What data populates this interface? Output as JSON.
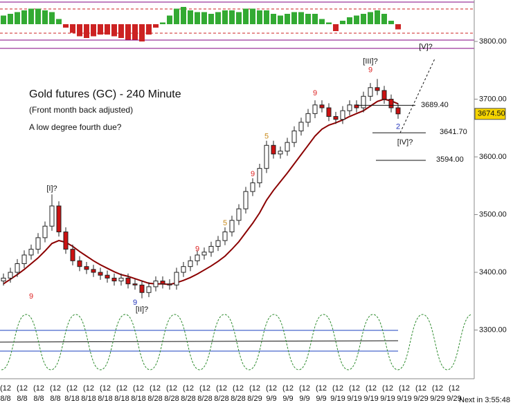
{
  "chart_data": {
    "type": "candlestick",
    "title": "Gold futures (GC) - 240 Minute",
    "subtitle": "(Front month back adjusted)",
    "note": "A low degree fourth due?",
    "footer": "Next in 3:55:48",
    "x_label_prefix": "(12",
    "x_labels": [
      "8/8",
      "8/8",
      "8/8",
      "8/8",
      "8/18",
      "8/18",
      "8/18",
      "8/18",
      "8/18",
      "8/28",
      "8/28",
      "8/28",
      "8/28",
      "8/28",
      "8/28",
      "8/29",
      "9/9",
      "9/9",
      "9/9",
      "9/9",
      "9/19",
      "9/19",
      "9/19",
      "9/19",
      "9/19",
      "9/29",
      "9/29",
      "9/29"
    ],
    "open": [
      3385,
      3390,
      3400,
      3415,
      3430,
      3440,
      3460,
      3480,
      3515,
      3470,
      3440,
      3420,
      3410,
      3405,
      3400,
      3395,
      3390,
      3385,
      3390,
      3380,
      3378,
      3365,
      3375,
      3385,
      3380,
      3378,
      3400,
      3410,
      3420,
      3430,
      3435,
      3445,
      3455,
      3470,
      3490,
      3510,
      3540,
      3555,
      3580,
      3620,
      3605,
      3610,
      3625,
      3645,
      3660,
      3675,
      3690,
      3685,
      3670,
      3665,
      3680,
      3690,
      3685,
      3705,
      3720,
      3715,
      3700,
      3685
    ],
    "high": [
      3398,
      3408,
      3423,
      3438,
      3448,
      3468,
      3488,
      3535,
      3523,
      3478,
      3448,
      3428,
      3418,
      3413,
      3408,
      3403,
      3398,
      3398,
      3398,
      3388,
      3386,
      3383,
      3393,
      3393,
      3388,
      3408,
      3418,
      3428,
      3438,
      3443,
      3453,
      3463,
      3478,
      3498,
      3518,
      3548,
      3563,
      3588,
      3628,
      3628,
      3618,
      3633,
      3653,
      3668,
      3683,
      3698,
      3698,
      3693,
      3678,
      3688,
      3698,
      3698,
      3713,
      3728,
      3735,
      3723,
      3708,
      3693
    ],
    "low": [
      3377,
      3382,
      3392,
      3407,
      3422,
      3432,
      3452,
      3472,
      3462,
      3432,
      3412,
      3402,
      3397,
      3392,
      3387,
      3382,
      3377,
      3377,
      3372,
      3370,
      3355,
      3357,
      3367,
      3372,
      3370,
      3370,
      3392,
      3402,
      3412,
      3422,
      3427,
      3437,
      3447,
      3462,
      3482,
      3502,
      3532,
      3547,
      3572,
      3597,
      3597,
      3602,
      3617,
      3637,
      3652,
      3667,
      3677,
      3662,
      3657,
      3657,
      3672,
      3677,
      3677,
      3697,
      3707,
      3692,
      3677,
      3666
    ],
    "close": [
      3390,
      3400,
      3415,
      3430,
      3440,
      3460,
      3480,
      3515,
      3470,
      3440,
      3420,
      3410,
      3405,
      3400,
      3395,
      3390,
      3385,
      3390,
      3380,
      3378,
      3365,
      3375,
      3385,
      3380,
      3378,
      3400,
      3410,
      3420,
      3430,
      3435,
      3445,
      3455,
      3470,
      3490,
      3510,
      3540,
      3555,
      3580,
      3620,
      3605,
      3610,
      3625,
      3645,
      3660,
      3675,
      3690,
      3685,
      3670,
      3665,
      3680,
      3690,
      3685,
      3705,
      3720,
      3715,
      3700,
      3685,
      3674.5
    ],
    "up_color": "#2e8b2e",
    "down_color": "#cc1111",
    "ma": {
      "color": "#8b0000",
      "values": [
        3380,
        3388,
        3396,
        3405,
        3415,
        3425,
        3437,
        3450,
        3455,
        3452,
        3445,
        3436,
        3428,
        3420,
        3413,
        3407,
        3401,
        3396,
        3393,
        3389,
        3385,
        3381,
        3380,
        3380,
        3379,
        3382,
        3386,
        3391,
        3397,
        3404,
        3411,
        3419,
        3428,
        3440,
        3453,
        3469,
        3485,
        3503,
        3525,
        3542,
        3557,
        3572,
        3588,
        3604,
        3620,
        3636,
        3648,
        3655,
        3659,
        3664,
        3670,
        3675,
        3680,
        3688,
        3696,
        3700,
        3697,
        3692
      ]
    },
    "ylim": [
      3230,
      3870
    ],
    "yticks": [
      {
        "value": 3300,
        "label": "3300.00"
      },
      {
        "value": 3400,
        "label": "3400.00"
      },
      {
        "value": 3500,
        "label": "3500.00"
      },
      {
        "value": 3600,
        "label": "3600.00"
      },
      {
        "value": 3700,
        "label": "3700.00"
      },
      {
        "value": 3800,
        "label": "3800.00"
      }
    ],
    "last_price": {
      "value": 3674.5,
      "label": "3674.50"
    },
    "levels": [
      {
        "value": 3689.4,
        "label": "3689.40"
      },
      {
        "value": 3641.7,
        "label": "3641.70"
      },
      {
        "value": 3594.0,
        "label": "3594.00"
      }
    ],
    "waves": [
      {
        "text": "[I]?",
        "candle": 7,
        "price": 3545
      },
      {
        "text": "[II]?",
        "candle": 20,
        "price": 3335
      },
      {
        "text": "[III]?",
        "candle": 53,
        "price": 3765
      },
      {
        "text": "[IV]?",
        "candle": 58,
        "price": 3625
      },
      {
        "text": "[V]?",
        "candle": 61,
        "price": 3790
      }
    ],
    "projection": [
      3641.7,
      3770
    ],
    "counts": [
      {
        "text": "9",
        "candle": 4,
        "price": 3358,
        "color": "#dd2222"
      },
      {
        "text": "9",
        "candle": 19,
        "price": 3347,
        "color": "#2233bb"
      },
      {
        "text": "9",
        "candle": 28,
        "price": 3440,
        "color": "#dd2222"
      },
      {
        "text": "5",
        "candle": 32,
        "price": 3485,
        "color": "#c88a1a"
      },
      {
        "text": "9",
        "candle": 36,
        "price": 3570,
        "color": "#dd2222"
      },
      {
        "text": "5",
        "candle": 38,
        "price": 3635,
        "color": "#c88a1a"
      },
      {
        "text": "9",
        "candle": 45,
        "price": 3710,
        "color": "#dd2222"
      },
      {
        "text": "9",
        "candle": 53,
        "price": 3750,
        "color": "#dd2222"
      },
      {
        "text": "2",
        "candle": 57,
        "price": 3652,
        "color": "#2233bb"
      }
    ],
    "oscillator": {
      "ylim": [
        -1,
        1
      ],
      "values": [
        0.5,
        0.6,
        0.7,
        0.8,
        0.9,
        0.9,
        0.8,
        0.7,
        0.3,
        -0.2,
        -0.5,
        -0.7,
        -0.8,
        -0.7,
        -0.6,
        -0.6,
        -0.7,
        -0.8,
        -0.9,
        -0.9,
        -1,
        -0.6,
        -0.2,
        0.1,
        0.5,
        0.9,
        1,
        0.8,
        0.7,
        0.7,
        0.6,
        0.7,
        0.8,
        0.8,
        0.7,
        0.9,
        0.9,
        0.8,
        0.8,
        0.6,
        0.5,
        0.6,
        0.7,
        0.7,
        0.6,
        0.6,
        0.3,
        0.1,
        -0.4,
        0.2,
        0.4,
        0.5,
        0.6,
        0.7,
        0.8,
        0.6,
        0.2,
        -0.3
      ]
    },
    "cycle": {
      "ylim": [
        -1,
        1
      ],
      "color": "#2e8b2e",
      "values": [
        -1,
        1,
        -1,
        1,
        -1,
        1,
        -1,
        1,
        -1,
        1,
        -1,
        1,
        -1,
        1,
        -1,
        1,
        -1,
        1,
        -1,
        1
      ]
    }
  }
}
